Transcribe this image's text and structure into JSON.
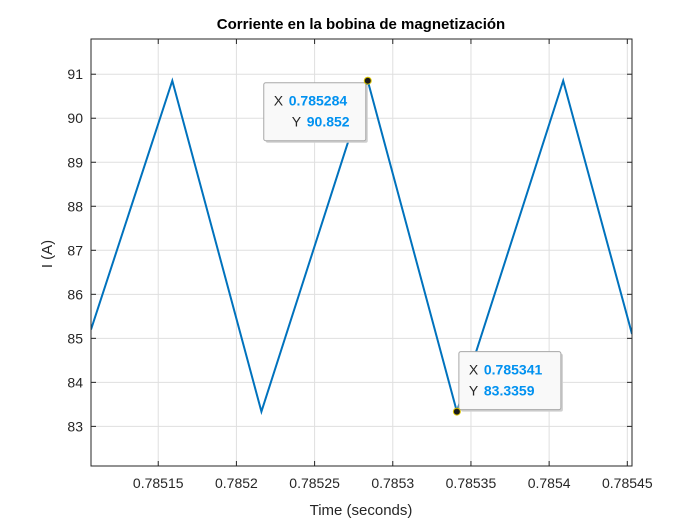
{
  "chart_data": {
    "type": "line",
    "title": "Corriente en la bobina de magnetización",
    "xlabel": "Time (seconds)",
    "ylabel": "I (A)",
    "xlim": [
      0.785107,
      0.785453
    ],
    "ylim": [
      82.1,
      91.8
    ],
    "grid": true,
    "xticks": [
      0.78515,
      0.7852,
      0.78525,
      0.7853,
      0.78535,
      0.7854,
      0.78545
    ],
    "xtick_labels": [
      "0.78515",
      "0.7852",
      "0.78525",
      "0.7853",
      "0.78535",
      "0.7854",
      "0.78545"
    ],
    "yticks": [
      83,
      84,
      85,
      86,
      87,
      88,
      89,
      90,
      91
    ],
    "ytick_labels": [
      "83",
      "84",
      "85",
      "86",
      "87",
      "88",
      "89",
      "90",
      "91"
    ],
    "series": [
      {
        "color": "#0072BD",
        "x": [
          0.785107,
          0.785159,
          0.785216,
          0.785284,
          0.785341,
          0.785409,
          0.785453
        ],
        "y": [
          85.2,
          90.852,
          83.3359,
          90.852,
          83.3359,
          90.852,
          85.1
        ]
      }
    ],
    "datatips": [
      {
        "x": 0.785284,
        "y": 90.852,
        "x_label": "X",
        "y_label": "Y",
        "x_text": "0.785284",
        "y_text": "90.852",
        "placement": "left"
      },
      {
        "x": 0.785341,
        "y": 83.3359,
        "x_label": "X",
        "y_label": "Y",
        "x_text": "0.785341",
        "y_text": "83.3359",
        "placement": "right"
      }
    ],
    "colors": {
      "line": "#0072BD",
      "datatip_value": "#0091F0",
      "grid": "#DFDFDF",
      "axes": "#262626"
    }
  }
}
